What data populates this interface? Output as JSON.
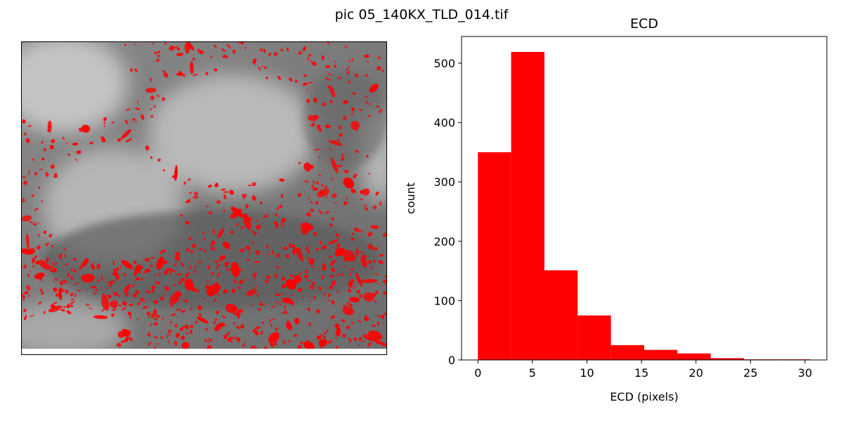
{
  "figure": {
    "suptitle": "pic 05_140KX_TLD_014.tif"
  },
  "image_panel": {
    "overlay_color": "#ff0000"
  },
  "chart_data": {
    "type": "bar",
    "title": "ECD",
    "xlabel": "ECD (pixels)",
    "ylabel": "count",
    "bar_color": "#ff0000",
    "bins": [
      {
        "start": 0.0,
        "end": 3.05,
        "count": 350
      },
      {
        "start": 3.05,
        "end": 6.1,
        "count": 519
      },
      {
        "start": 6.1,
        "end": 9.15,
        "count": 151
      },
      {
        "start": 9.15,
        "end": 12.2,
        "count": 75
      },
      {
        "start": 12.2,
        "end": 15.25,
        "count": 25
      },
      {
        "start": 15.25,
        "end": 18.3,
        "count": 17
      },
      {
        "start": 18.3,
        "end": 21.35,
        "count": 11
      },
      {
        "start": 21.35,
        "end": 24.4,
        "count": 3
      },
      {
        "start": 24.4,
        "end": 27.45,
        "count": 1
      },
      {
        "start": 27.45,
        "end": 30.5,
        "count": 1
      }
    ],
    "xlim": [
      -1.5,
      32.0
    ],
    "ylim": [
      0,
      545
    ],
    "xticks": [
      "0",
      "5",
      "10",
      "15",
      "20",
      "25",
      "30"
    ],
    "yticks": [
      "0",
      "100",
      "200",
      "300",
      "400",
      "500"
    ],
    "grid": false,
    "legend": "none"
  }
}
